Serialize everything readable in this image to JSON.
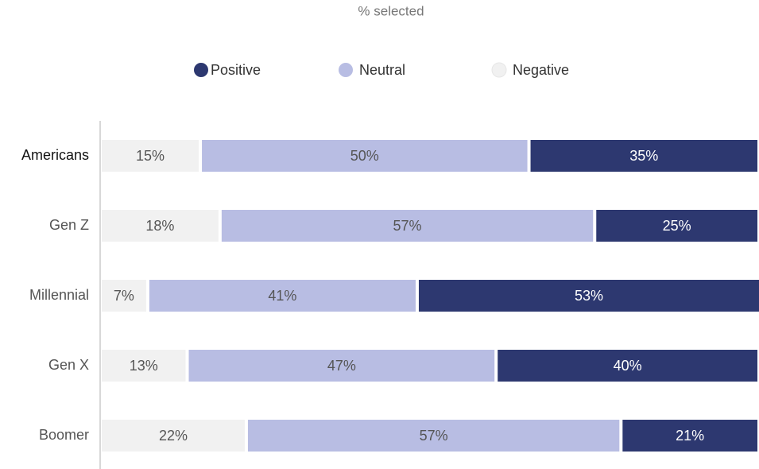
{
  "chart_data": {
    "type": "stacked-bar-horizontal",
    "title": "% selected",
    "categories": [
      "Americans",
      "Gen Z",
      "Millennial",
      "Gen X",
      "Boomer"
    ],
    "series": [
      {
        "name": "Negative",
        "color": "#f1f1f1",
        "values": [
          15,
          18,
          7,
          13,
          22
        ],
        "value_labels": [
          "15%",
          "18%",
          "7%",
          "13%",
          "22%"
        ]
      },
      {
        "name": "Neutral",
        "color": "#b8bde3",
        "values": [
          50,
          57,
          41,
          47,
          57
        ],
        "value_labels": [
          "50%",
          "57%",
          "41%",
          "47%",
          "57%"
        ]
      },
      {
        "name": "Positive",
        "color": "#2d3870",
        "values": [
          35,
          25,
          53,
          40,
          21
        ],
        "value_labels": [
          "35%",
          "25%",
          "53%",
          "40%",
          "21%"
        ]
      }
    ],
    "xlim": [
      0,
      100
    ]
  }
}
